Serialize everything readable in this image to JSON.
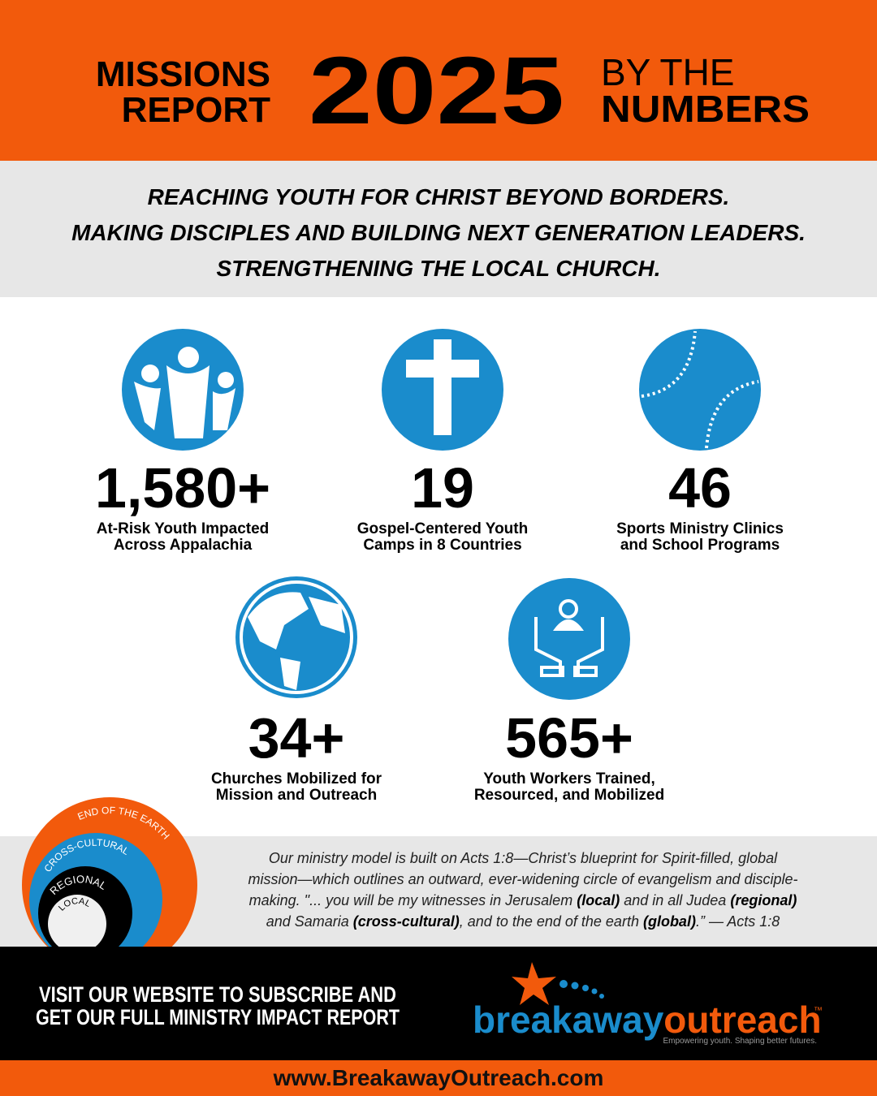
{
  "header": {
    "left": [
      "MISSIONS",
      "REPORT"
    ],
    "year": "2025",
    "right": [
      "BY THE",
      "NUMBERS"
    ]
  },
  "tagline": [
    "REACHING YOUTH FOR CHRIST BEYOND BORDERS.",
    "MAKING DISCIPLES AND BUILDING NEXT GENERATION LEADERS.",
    "STRENGTHENING THE LOCAL CHURCH."
  ],
  "stats": [
    {
      "number": "1,580+",
      "label": [
        "At-Risk Youth Impacted",
        "Across Appalachia"
      ]
    },
    {
      "number": "19",
      "label": [
        "Gospel-Centered Youth",
        "Camps in 8 Countries"
      ]
    },
    {
      "number": "46",
      "label": [
        "Sports Ministry Clinics",
        "and School Programs"
      ]
    },
    {
      "number": "34+",
      "label": [
        "Churches Mobilized for",
        "Mission and Outreach"
      ]
    },
    {
      "number": "565+",
      "label": [
        "Youth Workers Trained,",
        "Resourced, and Mobilized"
      ]
    }
  ],
  "model": {
    "circles": [
      "END OF THE EARTH",
      "CROSS-CULTURAL",
      "REGIONAL",
      "LOCAL"
    ],
    "lines": [
      [
        {
          "text": "Our ministry model is built on Acts 1:8—Christ’s blueprint for Spirit-filled, global"
        }
      ],
      [
        {
          "text": "mission—which outlines an outward, ever-widening circle of evangelism and disciple-"
        }
      ],
      [
        {
          "text": "making. \"... you will be my witnesses in Jerusalem "
        },
        {
          "text": "(local)",
          "bold": true
        },
        {
          "text": " and in all Judea "
        },
        {
          "text": "(regional)",
          "bold": true
        }
      ],
      [
        {
          "text": "and Samaria "
        },
        {
          "text": "(cross-cultural)",
          "bold": true
        },
        {
          "text": ", and to the end of the earth "
        },
        {
          "text": "(global)",
          "bold": true
        },
        {
          "text": ".” — Acts 1:8"
        }
      ]
    ]
  },
  "footer": {
    "cta": [
      "VISIT OUR WEBSITE TO SUBSCRIBE AND",
      "GET OUR FULL MINISTRY IMPACT REPORT"
    ],
    "logo": {
      "first": "breakaway",
      "second": "outreach",
      "mark": "™",
      "tagline": "Empowering youth. Shaping better futures."
    },
    "url": "www.BreakawayOutreach.com"
  }
}
